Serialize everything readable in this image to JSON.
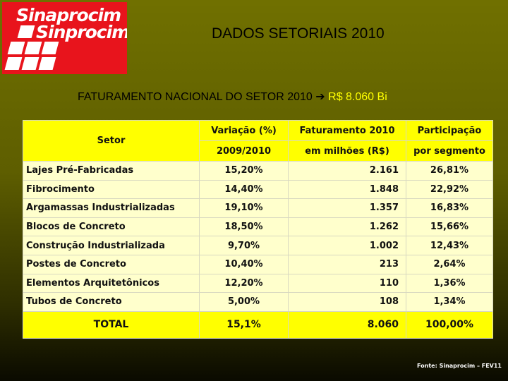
{
  "logo": {
    "line1": "Sinaprocim",
    "line2": "Sinprocim"
  },
  "header": {
    "title": "DADOS SETORIAIS 2010"
  },
  "subtitle": {
    "text": "FATURAMENTO NACIONAL DO SETOR 2010",
    "highlight": "R$ 8.060 Bi"
  },
  "table": {
    "header": [
      [
        "Setor",
        "Variação (%)",
        "Faturamento 2010",
        "Participação"
      ],
      [
        "2009/2010",
        "em milhões (R$)",
        "por segmento"
      ]
    ],
    "rows": [
      [
        "Lajes Pré-Fabricadas",
        "15,20%",
        "2.161",
        "26,81%"
      ],
      [
        "Fibrocimento",
        "14,40%",
        "1.848",
        "22,92%"
      ],
      [
        "Argamassas Industrializadas",
        "19,10%",
        "1.357",
        "16,83%"
      ],
      [
        "Blocos de Concreto",
        "18,50%",
        "1.262",
        "15,66%"
      ],
      [
        "Construção Industrializada",
        "9,70%",
        "1.002",
        "12,43%"
      ],
      [
        "Postes de Concreto",
        "10,40%",
        "213",
        "2,64%"
      ],
      [
        "Elementos Arquitetônicos",
        "12,20%",
        "110",
        "1,36%"
      ],
      [
        "Tubos de Concreto",
        "5,00%",
        "108",
        "1,34%"
      ]
    ],
    "total": [
      "TOTAL",
      "15,1%",
      "8.060",
      "100,00%"
    ]
  },
  "footer": {
    "source": "Fonte: Sinaprocim – FEV11"
  }
}
